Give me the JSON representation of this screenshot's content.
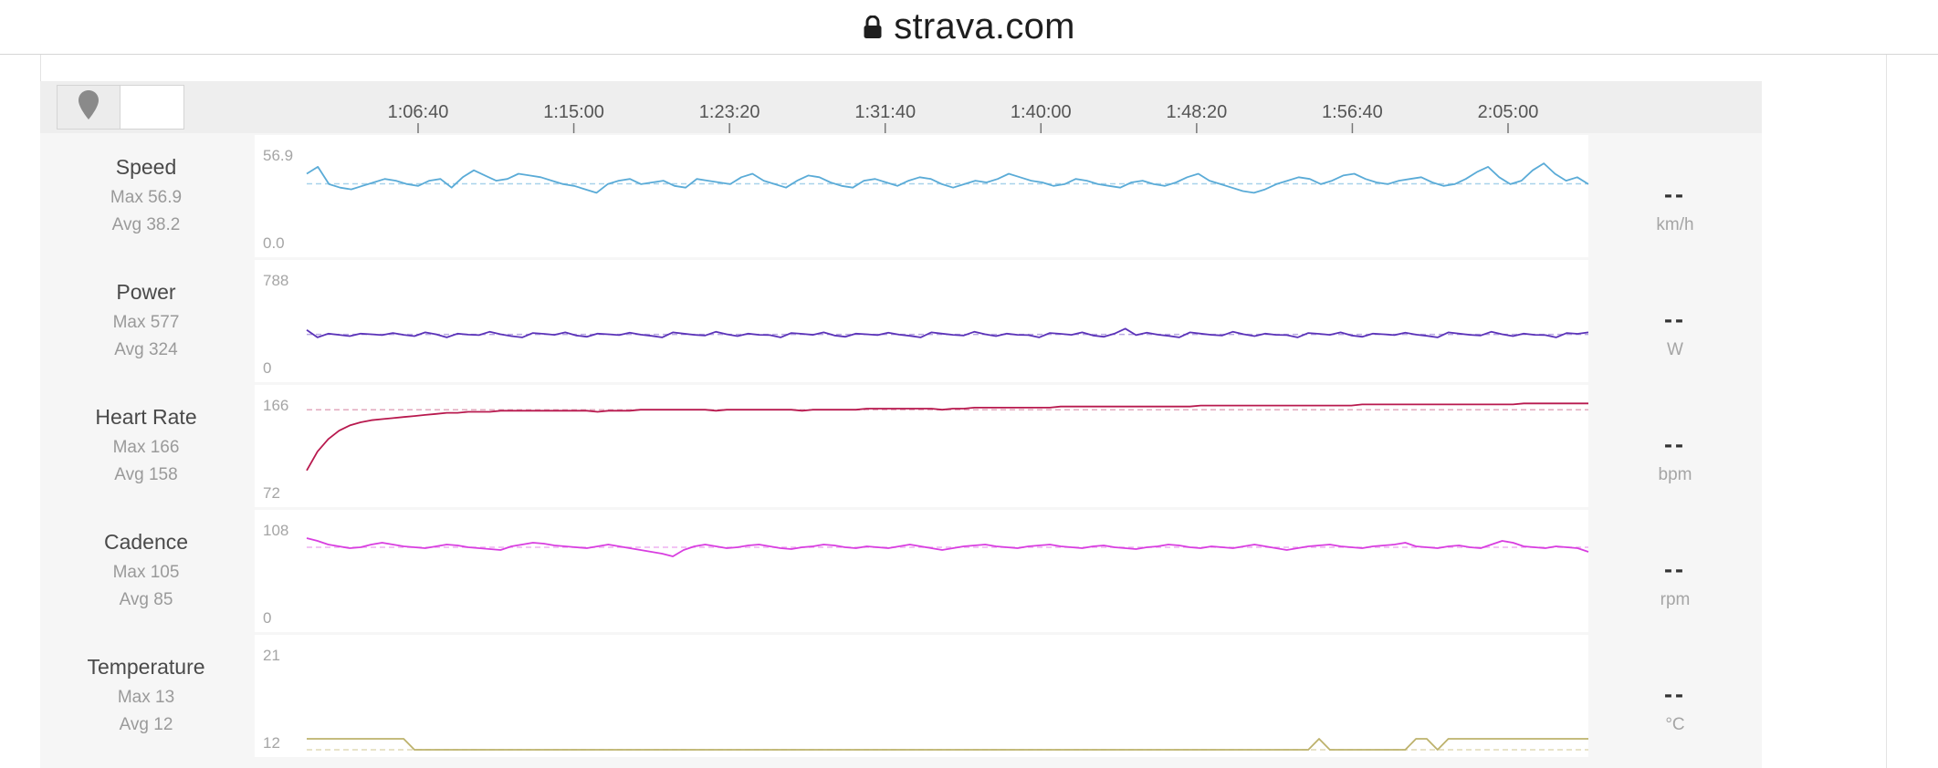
{
  "browser": {
    "url": "strava.com",
    "lock_icon": "lock-icon"
  },
  "toolbar": {
    "buttons": [
      {
        "icon": "map-pin-icon",
        "active": true
      },
      {
        "icon": "",
        "active": false
      }
    ]
  },
  "time_axis": {
    "ticks": [
      "1:06:40",
      "1:15:00",
      "1:23:20",
      "1:31:40",
      "1:40:00",
      "1:48:20",
      "1:56:40",
      "2:05:00"
    ]
  },
  "metrics": [
    {
      "name": "Speed",
      "max": "Max 56.9",
      "avg": "Avg 38.2",
      "y_top": "56.9",
      "y_bottom": "0.0",
      "current": "--",
      "unit": "km/h",
      "color": "#5aabd7",
      "avg_color": "#a8d2ea"
    },
    {
      "name": "Power",
      "max": "Max 577",
      "avg": "Avg 324",
      "y_top": "788",
      "y_bottom": "0",
      "current": "--",
      "unit": "W",
      "color": "#5b33b8",
      "avg_color": "#b9a9e3"
    },
    {
      "name": "Heart Rate",
      "max": "Max 166",
      "avg": "Avg 158",
      "y_top": "166",
      "y_bottom": "72",
      "current": "--",
      "unit": "bpm",
      "color": "#b8194e",
      "avg_color": "#e2a9bd"
    },
    {
      "name": "Cadence",
      "max": "Max 105",
      "avg": "Avg 85",
      "y_top": "108",
      "y_bottom": "0",
      "current": "--",
      "unit": "rpm",
      "color": "#d83ee0",
      "avg_color": "#eeb1f1"
    },
    {
      "name": "Temperature",
      "max": "Max 13",
      "avg": "Avg 12",
      "y_top": "21",
      "y_bottom": "12",
      "current": "--",
      "unit": "°C",
      "color": "#bdb26c",
      "avg_color": "#e0dab6"
    }
  ],
  "chart_data": {
    "type": "line",
    "x_axis": "elapsed time",
    "x_ticks": [
      "1:06:40",
      "1:15:00",
      "1:23:20",
      "1:31:40",
      "1:40:00",
      "1:48:20",
      "1:56:40",
      "2:05:00"
    ],
    "series": [
      {
        "name": "Speed",
        "unit": "km/h",
        "ylim": [
          0.0,
          56.9
        ],
        "max": 56.9,
        "avg": 38.2,
        "values": [
          44,
          48,
          38,
          36,
          35,
          37,
          39,
          41,
          40,
          38,
          37,
          40,
          41,
          36,
          42,
          46,
          43,
          40,
          41,
          44,
          43,
          42,
          40,
          38,
          37,
          35,
          33,
          38,
          40,
          41,
          38,
          39,
          40,
          37,
          36,
          41,
          40,
          39,
          38,
          42,
          44,
          40,
          38,
          36,
          40,
          43,
          42,
          39,
          37,
          36,
          40,
          41,
          39,
          37,
          40,
          42,
          41,
          38,
          36,
          38,
          40,
          39,
          41,
          44,
          42,
          40,
          39,
          37,
          38,
          41,
          40,
          38,
          37,
          36,
          39,
          40,
          38,
          37,
          39,
          42,
          44,
          40,
          38,
          36,
          34,
          33,
          35,
          38,
          40,
          42,
          41,
          38,
          40,
          43,
          44,
          41,
          39,
          38,
          40,
          41,
          42,
          39,
          37,
          38,
          41,
          45,
          48,
          42,
          38,
          40,
          46,
          50,
          44,
          40,
          42,
          38
        ]
      },
      {
        "name": "Power",
        "unit": "W",
        "ylim": [
          0,
          788
        ],
        "max": 577,
        "avg": 324,
        "values": [
          360,
          300,
          330,
          320,
          310,
          330,
          325,
          318,
          335,
          320,
          310,
          340,
          325,
          300,
          330,
          322,
          318,
          345,
          325,
          310,
          300,
          335,
          328,
          320,
          340,
          315,
          305,
          330,
          325,
          318,
          338,
          322,
          312,
          300,
          340,
          330,
          320,
          315,
          345,
          325,
          310,
          330,
          320,
          318,
          300,
          335,
          328,
          320,
          340,
          315,
          305,
          330,
          325,
          318,
          338,
          322,
          312,
          300,
          340,
          330,
          320,
          315,
          345,
          325,
          310,
          330,
          320,
          318,
          300,
          335,
          328,
          320,
          340,
          315,
          305,
          330,
          370,
          318,
          338,
          322,
          312,
          300,
          340,
          330,
          320,
          315,
          345,
          325,
          310,
          330,
          320,
          318,
          300,
          335,
          328,
          320,
          340,
          315,
          305,
          330,
          325,
          318,
          338,
          322,
          312,
          300,
          340,
          330,
          320,
          315,
          345,
          325,
          310,
          330,
          320,
          318,
          300,
          335,
          328,
          340
        ]
      },
      {
        "name": "Heart Rate",
        "unit": "bpm",
        "ylim": [
          72,
          166
        ],
        "max": 166,
        "avg": 158,
        "values": [
          100,
          118,
          130,
          138,
          143,
          146,
          148,
          149,
          150,
          151,
          152,
          153,
          154,
          155,
          155,
          156,
          156,
          156,
          157,
          157,
          157,
          157,
          157,
          157,
          157,
          157,
          157,
          156,
          157,
          157,
          157,
          158,
          158,
          158,
          158,
          158,
          158,
          158,
          157,
          158,
          158,
          158,
          158,
          158,
          158,
          158,
          157,
          158,
          158,
          158,
          158,
          158,
          159,
          159,
          159,
          159,
          159,
          159,
          159,
          158,
          159,
          159,
          160,
          160,
          160,
          160,
          160,
          160,
          160,
          160,
          161,
          161,
          161,
          161,
          161,
          161,
          161,
          161,
          161,
          161,
          161,
          161,
          161,
          162,
          162,
          162,
          162,
          162,
          162,
          162,
          162,
          162,
          162,
          162,
          162,
          162,
          162,
          162,
          163,
          163,
          163,
          163,
          163,
          163,
          163,
          163,
          163,
          163,
          163,
          163,
          163,
          163,
          163,
          164,
          164,
          164,
          164,
          164,
          164,
          164
        ]
      },
      {
        "name": "Cadence",
        "unit": "rpm",
        "ylim": [
          0,
          108
        ],
        "max": 105,
        "avg": 85,
        "values": [
          95,
          92,
          88,
          86,
          84,
          85,
          88,
          90,
          88,
          86,
          85,
          84,
          86,
          88,
          87,
          85,
          84,
          83,
          82,
          86,
          88,
          90,
          89,
          87,
          86,
          85,
          84,
          86,
          88,
          86,
          84,
          82,
          80,
          78,
          75,
          82,
          86,
          88,
          86,
          84,
          85,
          87,
          88,
          86,
          84,
          83,
          85,
          86,
          88,
          87,
          85,
          84,
          86,
          85,
          84,
          86,
          88,
          86,
          84,
          82,
          84,
          86,
          87,
          88,
          86,
          85,
          84,
          86,
          87,
          88,
          86,
          85,
          84,
          86,
          87,
          85,
          84,
          83,
          85,
          86,
          88,
          87,
          85,
          84,
          86,
          85,
          84,
          86,
          88,
          86,
          84,
          82,
          84,
          86,
          87,
          88,
          86,
          85,
          84,
          86,
          87,
          88,
          90,
          86,
          85,
          84,
          86,
          87,
          85,
          84,
          88,
          92,
          90,
          86,
          85,
          84,
          86,
          85,
          84,
          80
        ]
      },
      {
        "name": "Temperature",
        "unit": "°C",
        "ylim": [
          12,
          21
        ],
        "max": 13,
        "avg": 12,
        "values": [
          13,
          13,
          13,
          13,
          13,
          13,
          13,
          13,
          13,
          13,
          12,
          12,
          12,
          12,
          12,
          12,
          12,
          12,
          12,
          12,
          12,
          12,
          12,
          12,
          12,
          12,
          12,
          12,
          12,
          12,
          12,
          12,
          12,
          12,
          12,
          12,
          12,
          12,
          12,
          12,
          12,
          12,
          12,
          12,
          12,
          12,
          12,
          12,
          12,
          12,
          12,
          12,
          12,
          12,
          12,
          12,
          12,
          12,
          12,
          12,
          12,
          12,
          12,
          12,
          12,
          12,
          12,
          12,
          12,
          12,
          12,
          12,
          12,
          12,
          12,
          12,
          12,
          12,
          12,
          12,
          12,
          12,
          12,
          12,
          12,
          12,
          12,
          12,
          12,
          12,
          12,
          12,
          12,
          12,
          13,
          12,
          12,
          12,
          12,
          12,
          12,
          12,
          12,
          13,
          13,
          12,
          13,
          13,
          13,
          13,
          13,
          13,
          13,
          13,
          13,
          13,
          13,
          13,
          13,
          13
        ]
      }
    ]
  }
}
